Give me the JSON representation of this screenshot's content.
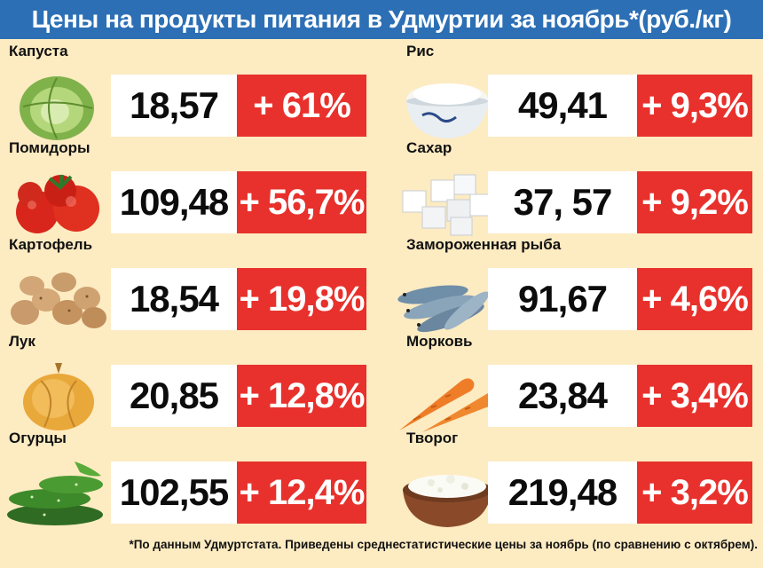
{
  "title": "Цены на продукты питания в Удмуртии за ноябрь*(руб./кг)",
  "left_items": [
    {
      "name": "Капуста",
      "price": "18,57",
      "change": "+ 61%",
      "icon": "cabbage-icon"
    },
    {
      "name": "Помидоры",
      "price": "109,48",
      "change": "+ 56,7%",
      "icon": "tomato-icon"
    },
    {
      "name": "Картофель",
      "price": "18,54",
      "change": "+ 19,8%",
      "icon": "potato-icon"
    },
    {
      "name": "Лук",
      "price": "20,85",
      "change": "+ 12,8%",
      "icon": "onion-icon"
    },
    {
      "name": "Огурцы",
      "price": "102,55",
      "change": "+ 12,4%",
      "icon": "cucumber-icon"
    }
  ],
  "right_items": [
    {
      "name": "Рис",
      "price": "49,41",
      "change": "+ 9,3%",
      "icon": "rice-icon"
    },
    {
      "name": "Сахар",
      "price": "37, 57",
      "change": "+ 9,2%",
      "icon": "sugar-icon"
    },
    {
      "name": "Замороженная рыба",
      "price": "91,67",
      "change": "+ 4,6%",
      "icon": "fish-icon"
    },
    {
      "name": "Морковь",
      "price": "23,84",
      "change": "+ 3,4%",
      "icon": "carrot-icon"
    },
    {
      "name": "Творог",
      "price": "219,48",
      "change": "+ 3,2%",
      "icon": "cottage-cheese-icon"
    }
  ],
  "footnote": "*По данным Удмуртстата. Приведены среднестатистические цены за ноябрь (по сравнению с октябрем).",
  "colors": {
    "title_bg": "#2c6fb5",
    "page_bg": "#fdebc2",
    "change_bg": "#e8312c",
    "price_bg": "#ffffff"
  }
}
